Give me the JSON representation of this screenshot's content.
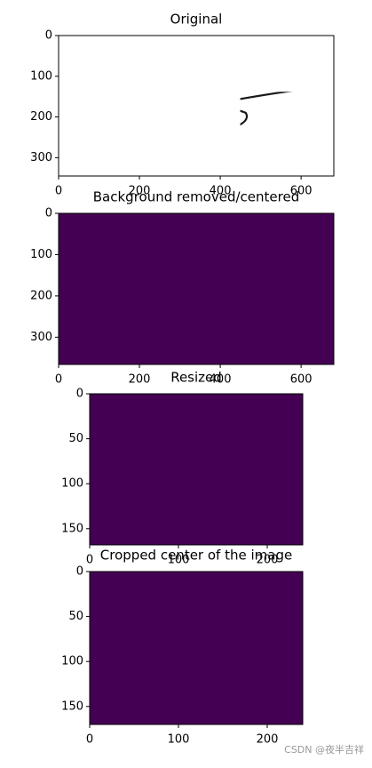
{
  "chart_data": [
    {
      "type": "image",
      "title": "Original",
      "colormap": "gray",
      "xlim": [
        0,
        681
      ],
      "ylim": [
        345,
        0
      ],
      "xticks": [
        0,
        200,
        400,
        600
      ],
      "yticks": [
        0,
        100,
        200,
        300
      ]
    },
    {
      "type": "image",
      "title": "Background removed/centered",
      "colormap": "viridis",
      "xlim": [
        0,
        681
      ],
      "ylim": [
        366,
        0
      ],
      "xticks": [
        0,
        200,
        400,
        600
      ],
      "yticks": [
        0,
        100,
        200,
        300
      ]
    },
    {
      "type": "image",
      "title": "Resized",
      "colormap": "viridis",
      "xlim": [
        0,
        240
      ],
      "ylim": [
        168,
        0
      ],
      "xticks": [
        0,
        100,
        200
      ],
      "yticks": [
        0,
        50,
        100,
        150
      ]
    },
    {
      "type": "image",
      "title": "Cropped center of the image",
      "colormap": "viridis",
      "xlim": [
        0,
        240
      ],
      "ylim": [
        170,
        0
      ],
      "xticks": [
        0,
        100,
        200
      ],
      "yticks": [
        0,
        50,
        100,
        150
      ]
    }
  ],
  "watermark": "CSDN @夜半吉祥"
}
